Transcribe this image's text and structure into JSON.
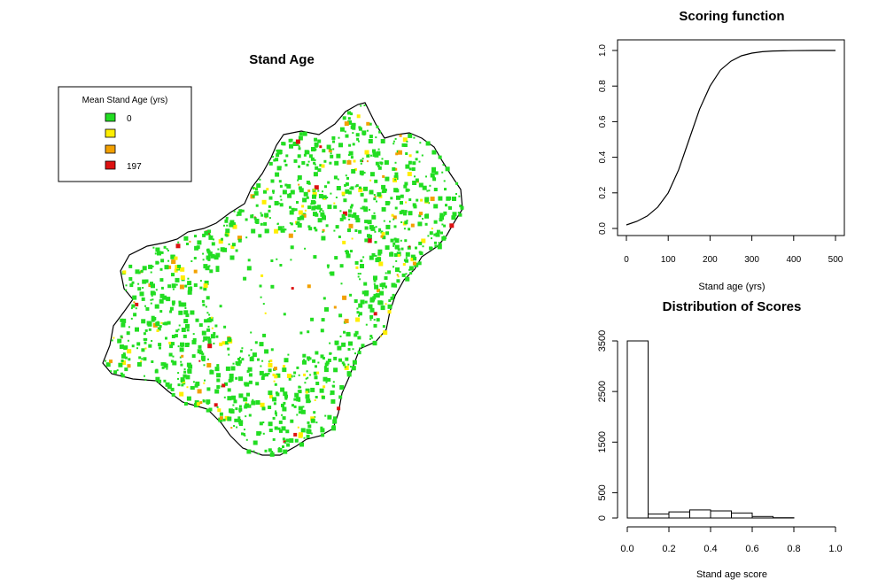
{
  "map": {
    "title": "Stand Age",
    "legend": {
      "title": "Mean Stand Age (yrs)",
      "items": [
        {
          "label": "0",
          "color": "#22dd22"
        },
        {
          "label": "",
          "color": "#ffee00"
        },
        {
          "label": "",
          "color": "#f2a000"
        },
        {
          "label": "197",
          "color": "#dd1111"
        }
      ]
    }
  },
  "chart_data": [
    {
      "type": "line",
      "title": "Scoring function",
      "xlabel": "Stand age (yrs)",
      "ylabel": "",
      "xlim": [
        0,
        500
      ],
      "ylim": [
        0,
        1
      ],
      "xticks": [
        0,
        100,
        200,
        300,
        400,
        500
      ],
      "yticks": [
        0.0,
        0.2,
        0.4,
        0.6,
        0.8,
        1.0
      ],
      "ytick_labels": [
        "0.0",
        "0.2",
        "0.4",
        "0.6",
        "0.8",
        "1.0"
      ],
      "x": [
        0,
        25,
        50,
        75,
        100,
        125,
        150,
        175,
        200,
        225,
        250,
        275,
        300,
        325,
        350,
        375,
        400,
        450,
        500
      ],
      "y": [
        0.02,
        0.04,
        0.07,
        0.12,
        0.2,
        0.33,
        0.5,
        0.67,
        0.8,
        0.89,
        0.94,
        0.97,
        0.985,
        0.993,
        0.997,
        0.998,
        0.999,
        1.0,
        1.0
      ]
    },
    {
      "type": "bar",
      "title": "Distribution of Scores",
      "xlabel": "Stand age score",
      "ylabel": "",
      "xlim": [
        0,
        1
      ],
      "ylim": [
        0,
        3500
      ],
      "xticks": [
        0.0,
        0.2,
        0.4,
        0.6,
        0.8,
        1.0
      ],
      "xtick_labels": [
        "0.0",
        "0.2",
        "0.4",
        "0.6",
        "0.8",
        "1.0"
      ],
      "yticks": [
        0,
        500,
        1500,
        2500,
        3500
      ],
      "bin_edges": [
        0.0,
        0.1,
        0.2,
        0.3,
        0.4,
        0.5,
        0.6,
        0.7,
        0.8,
        0.9,
        1.0
      ],
      "values": [
        3500,
        80,
        120,
        160,
        140,
        100,
        30,
        5,
        0,
        0
      ]
    }
  ]
}
